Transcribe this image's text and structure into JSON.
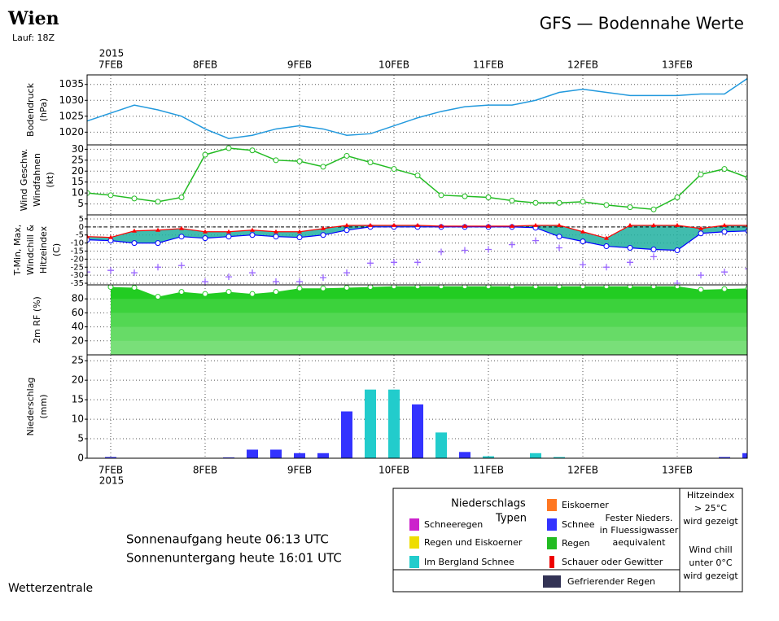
{
  "header": {
    "station": "Wien",
    "run": "Lauf: 18Z",
    "title": "GFS — Bodennahe Werte"
  },
  "chart_data": [
    {
      "type": "line",
      "year": "2015",
      "categories": [
        null,
        "7FEB",
        null,
        null,
        null,
        "8FEB",
        null,
        null,
        null,
        "9FEB",
        null,
        null,
        null,
        "10FEB",
        null,
        null,
        null,
        "11FEB",
        null,
        null,
        null,
        "12FEB",
        null,
        null,
        null,
        "13FEB",
        null,
        null,
        null
      ],
      "ylabel": [
        "Bodendruck",
        "(hPa)"
      ],
      "ylabel_colors": [
        "#000000",
        "#000000"
      ],
      "color": "#2299dd",
      "markers": false,
      "values": [
        1023.5,
        1026,
        1028.5,
        1027,
        1025,
        1021,
        1018,
        1019,
        1021,
        1022,
        1021,
        1019,
        1019.5,
        1022,
        1024.5,
        1026.5,
        1028,
        1028.5,
        1028.5,
        1030,
        1032.5,
        1033.5,
        1032.5,
        1031.5,
        1031.5,
        1031.5,
        1032,
        1032,
        1037
      ],
      "ylim": [
        1016,
        1038
      ],
      "yticks": [
        1020,
        1025,
        1030,
        1035
      ],
      "grid": true
    },
    {
      "type": "line",
      "ylabel": [
        "Wind Geschw.",
        "Windfahnen",
        "(kt)"
      ],
      "ylabel_colors": [
        "#00aa00",
        "#000000",
        "#000000"
      ],
      "color": "#22bb22",
      "markers": true,
      "values": [
        10,
        9,
        7.5,
        6,
        8,
        27.5,
        30.5,
        29.5,
        25,
        24.5,
        22,
        27,
        24,
        21,
        18,
        9,
        8.5,
        8,
        6.5,
        5.5,
        5.5,
        6,
        4.5,
        3.5,
        2.5,
        8,
        18.5,
        21,
        17
      ],
      "ylim": [
        0,
        32
      ],
      "yticks": [
        5,
        10,
        15,
        20,
        25,
        30
      ],
      "grid": true
    },
    {
      "type": "range",
      "ylabel": [
        "T-Min, Max,",
        "Windchill &",
        "Hitzeindex",
        "(C)"
      ],
      "ylabel_colors": [
        "#3333ff",
        "#9966ff",
        "#ff8844",
        "#000000"
      ],
      "fill": "#20b0a0",
      "series": [
        {
          "color": "#0000ff",
          "marker": "circle",
          "values": [
            -8,
            -8.5,
            -10,
            -10,
            -6,
            -7,
            -6,
            -5,
            -6,
            -6.5,
            -5,
            -2,
            0,
            0,
            0,
            0,
            0,
            0,
            0,
            -0.5,
            -6,
            -9,
            -12,
            -13,
            -14,
            -14.5,
            -4,
            -3,
            -2.5
          ]
        },
        {
          "color": "#ff0000",
          "marker": "triangle",
          "values": [
            -6,
            -6.5,
            -2.5,
            -2,
            -1,
            -3,
            -3,
            -2,
            -3,
            -3,
            -1,
            1,
            1,
            1,
            1,
            0.5,
            0.5,
            0.5,
            0.5,
            1,
            1,
            -3,
            -7,
            1,
            1,
            1,
            -1,
            1,
            1
          ]
        },
        {
          "color": "#9966ff",
          "marker": "plus",
          "values": [
            -28,
            -27,
            -28.5,
            -25,
            -24,
            -34,
            -31,
            -28.5,
            -34,
            -34,
            -31.5,
            -28.5,
            -22.5,
            -22,
            -22,
            -15.5,
            -14.5,
            -14,
            -11,
            -8.5,
            -13,
            -23.5,
            -25,
            -22,
            -18.5,
            -35,
            -30,
            -28,
            -26
          ]
        }
      ],
      "ylim": [
        -36,
        7.5
      ],
      "yticks": [
        5,
        0,
        -5,
        -10,
        -15,
        -20,
        -25,
        -30,
        -35
      ],
      "zero_line": true,
      "grid": true
    },
    {
      "type": "area",
      "ylabel": [
        "2m RF (%)"
      ],
      "ylabel_colors": [
        "#00aa00"
      ],
      "color": "#22cc22",
      "values": [
        null,
        97,
        96,
        83,
        90,
        87,
        90,
        87,
        90,
        95,
        95,
        96,
        97,
        98,
        98,
        98,
        98,
        98,
        98,
        98,
        98,
        98,
        98,
        98,
        98,
        98,
        93,
        94,
        95
      ],
      "ylim": [
        0,
        100
      ],
      "yticks": [
        20,
        40,
        60,
        80
      ],
      "grid": true
    },
    {
      "type": "bar",
      "ylabel": [
        "Niederschlag",
        "(mm)"
      ],
      "ylabel_colors": [
        "#000000",
        "#000000"
      ],
      "values": [
        null,
        0.3,
        null,
        null,
        null,
        null,
        0.2,
        2.2,
        2.2,
        1.3,
        1.3,
        12,
        17.6,
        17.6,
        13.8,
        6.6,
        1.6,
        0.5,
        null,
        1.3,
        0.3,
        null,
        null,
        null,
        null,
        null,
        null,
        0.3,
        1.3
      ],
      "colors": [
        null,
        "#3333ff",
        null,
        null,
        null,
        null,
        "#3333ff",
        "#3333ff",
        "#3333ff",
        "#3333ff",
        "#3333ff",
        "#3333ff",
        "#22cccc",
        "#22cccc",
        "#3333ff",
        "#22cccc",
        "#3333ff",
        "#22cccc",
        null,
        "#22cccc",
        "#22cccc",
        null,
        null,
        null,
        null,
        null,
        null,
        "#3333ff",
        "#3333ff"
      ],
      "ylim": [
        0,
        26.5
      ],
      "yticks": [
        0,
        5,
        10,
        15,
        20,
        25
      ],
      "grid": true
    }
  ],
  "legend": {
    "title": [
      "Niederschlags",
      "Typen"
    ],
    "items": [
      {
        "label": "Schneeregen",
        "color": "#cc22cc"
      },
      {
        "label": "Regen und Eiskoerner",
        "color": "#eedd00"
      },
      {
        "label": "Im Bergland Schnee",
        "color": "#22cccc"
      },
      {
        "label": "Eiskoerner",
        "color": "#ff7722"
      },
      {
        "label": "Schnee",
        "color": "#3333ff"
      },
      {
        "label": "Regen",
        "color": "#22bb22"
      },
      {
        "label": "Schauer oder Gewitter",
        "color": "#ee0000"
      },
      {
        "label": "Gefrierender Regen",
        "color": "#333355"
      }
    ],
    "note": [
      "Fester Nieders.",
      "in Fluessigwasser",
      "aequivalent"
    ],
    "heat": [
      "Hitzeindex",
      "> 25°C",
      "wird gezeigt"
    ],
    "chill": [
      "Wind chill",
      "unter 0°C",
      "wird gezeigt"
    ]
  },
  "sun": [
    "Sonnenaufgang heute 06:13 UTC",
    "Sonnenuntergang heute 16:01 UTC"
  ],
  "footer": "Wetterzentrale"
}
